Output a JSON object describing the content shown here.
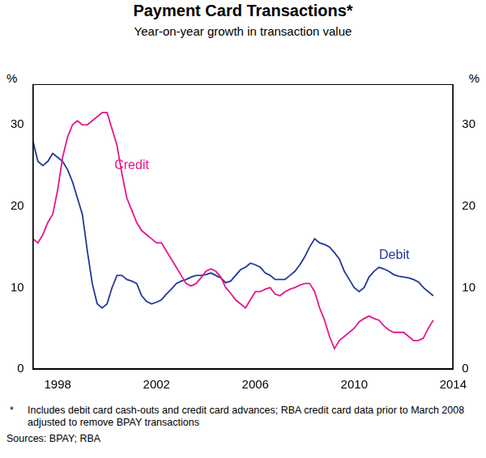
{
  "chart_data": {
    "type": "line",
    "title": "Payment Card Transactions*",
    "subtitle": "Year-on-year growth in transaction value",
    "ylabel": "%",
    "y2label": "%",
    "footnote": {
      "marker": "*",
      "text": "Includes debit card cash-outs and credit card advances; RBA credit card data prior to March 2008 adjusted to remove BPAY transactions"
    },
    "source": "Sources: BPAY; RBA",
    "xlim": [
      1997,
      2014
    ],
    "xticks": [
      1998,
      2002,
      2006,
      2010,
      2014
    ],
    "ylim": [
      0,
      35
    ],
    "yticks": [
      0,
      10,
      20,
      30
    ],
    "y2lim": [
      0,
      35
    ],
    "y2ticks": [
      0,
      10,
      20,
      30
    ],
    "grid": false,
    "x": [
      1997.0,
      1997.2,
      1997.4,
      1997.6,
      1997.8,
      1998.0,
      1998.2,
      1998.4,
      1998.6,
      1998.8,
      1999.0,
      1999.2,
      1999.4,
      1999.6,
      1999.8,
      2000.0,
      2000.2,
      2000.4,
      2000.6,
      2000.8,
      2001.0,
      2001.2,
      2001.4,
      2001.6,
      2001.8,
      2002.0,
      2002.2,
      2002.4,
      2002.6,
      2002.8,
      2003.0,
      2003.2,
      2003.4,
      2003.6,
      2003.8,
      2004.0,
      2004.2,
      2004.4,
      2004.6,
      2004.8,
      2005.0,
      2005.2,
      2005.4,
      2005.6,
      2005.8,
      2006.0,
      2006.2,
      2006.4,
      2006.6,
      2006.8,
      2007.0,
      2007.2,
      2007.4,
      2007.6,
      2007.8,
      2008.0,
      2008.2,
      2008.4,
      2008.6,
      2008.8,
      2009.0,
      2009.2,
      2009.4,
      2009.6,
      2009.8,
      2010.0,
      2010.2,
      2010.4,
      2010.6,
      2010.8,
      2011.0,
      2011.2,
      2011.4,
      2011.6,
      2011.8,
      2012.0,
      2012.2,
      2012.4,
      2012.6,
      2012.8,
      2013.0,
      2013.2
    ],
    "series": [
      {
        "name": "Credit",
        "color": "#e5178b",
        "values": [
          16,
          15.5,
          16.5,
          18,
          19,
          22,
          26,
          28.5,
          30,
          30.5,
          30,
          30,
          30.5,
          31,
          31.5,
          31.5,
          29.5,
          27.5,
          24,
          21,
          19.5,
          18,
          17,
          16.5,
          16,
          15.5,
          15.5,
          14.5,
          13.5,
          12.5,
          11.5,
          10.5,
          10.2,
          10.5,
          11.2,
          12,
          12.3,
          12,
          11.3,
          10,
          9.3,
          8.5,
          8,
          7.5,
          8.5,
          9.5,
          9.5,
          9.8,
          10,
          9.2,
          9,
          9.5,
          9.8,
          10,
          10.3,
          10.5,
          10.5,
          9.5,
          7.5,
          6,
          4,
          2.5,
          3.5,
          4,
          4.5,
          5,
          5.8,
          6.2,
          6.5,
          6.2,
          6,
          5.3,
          4.8,
          4.5,
          4.5,
          4.5,
          4,
          3.5,
          3.5,
          3.8,
          5,
          6
        ]
      },
      {
        "name": "Debit",
        "color": "#23379a",
        "values": [
          28,
          25.5,
          25,
          25.5,
          26.5,
          26,
          25.5,
          24.5,
          23,
          21,
          19,
          14.5,
          10.5,
          8,
          7.5,
          8,
          10,
          11.5,
          11.5,
          11,
          10.8,
          10.5,
          9,
          8.3,
          8,
          8.2,
          8.5,
          9.2,
          9.8,
          10.5,
          10.8,
          11,
          11.3,
          11.5,
          11.5,
          11.6,
          11.8,
          11.5,
          11.2,
          10.6,
          10.8,
          11.5,
          12.2,
          12.5,
          13,
          12.8,
          12.5,
          11.8,
          11.5,
          11,
          11,
          11,
          11.5,
          12,
          12.8,
          13.8,
          15,
          16,
          15.5,
          15.3,
          15,
          14.3,
          13.5,
          12,
          11,
          10,
          9.5,
          10,
          11.3,
          12,
          12.5,
          12.3,
          12,
          11.6,
          11.4,
          11.3,
          11.2,
          11,
          10.7,
          10,
          9.5,
          9
        ]
      }
    ]
  }
}
